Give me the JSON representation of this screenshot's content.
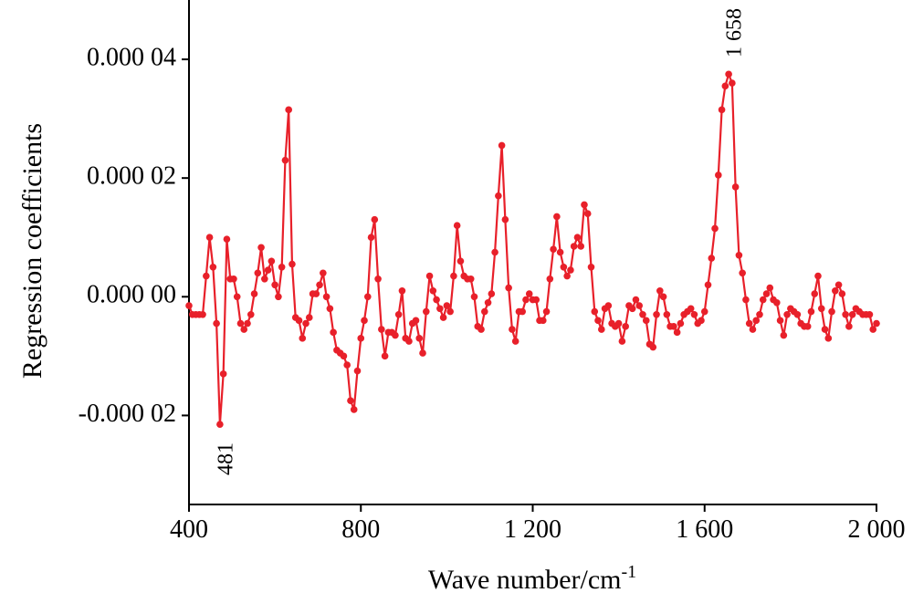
{
  "chart_data": {
    "type": "line",
    "xlabel": "Wave number/cm",
    "xlabel_superscript": "-1",
    "ylabel": "Regression coefficients",
    "annotations": [
      "481",
      "1 658"
    ],
    "xlim": [
      400,
      2000
    ],
    "xticks": [
      400,
      800,
      {
        "value": 1200,
        "label": "1 200"
      },
      {
        "value": 1600,
        "label": "1 600"
      },
      {
        "value": 2000,
        "label": "2 000"
      }
    ],
    "ylim": [
      -3.5e-05,
      5e-05
    ],
    "yticks": [
      {
        "value": -2e-05,
        "label": "-0.000 02"
      },
      {
        "value": 0,
        "label": "0.000 00"
      },
      {
        "value": 2e-05,
        "label": "0.000 02"
      },
      {
        "value": 4e-05,
        "label": "0.000 04"
      }
    ],
    "grid": false,
    "x": [
      400,
      408,
      416,
      424,
      432,
      440,
      448,
      456,
      464,
      472,
      480,
      488,
      496,
      504,
      512,
      520,
      528,
      536,
      544,
      552,
      560,
      568,
      576,
      584,
      592,
      600,
      608,
      616,
      624,
      632,
      640,
      648,
      656,
      664,
      672,
      680,
      688,
      696,
      704,
      712,
      720,
      728,
      736,
      744,
      752,
      760,
      768,
      776,
      784,
      792,
      800,
      808,
      816,
      824,
      832,
      840,
      848,
      856,
      864,
      872,
      880,
      888,
      896,
      904,
      912,
      920,
      928,
      936,
      944,
      952,
      960,
      968,
      976,
      984,
      992,
      1000,
      1008,
      1016,
      1024,
      1032,
      1040,
      1048,
      1056,
      1064,
      1072,
      1080,
      1088,
      1096,
      1104,
      1112,
      1120,
      1128,
      1136,
      1144,
      1152,
      1160,
      1168,
      1176,
      1184,
      1192,
      1200,
      1208,
      1216,
      1224,
      1232,
      1240,
      1248,
      1256,
      1264,
      1272,
      1280,
      1288,
      1296,
      1304,
      1312,
      1320,
      1328,
      1336,
      1344,
      1352,
      1360,
      1368,
      1376,
      1384,
      1392,
      1400,
      1408,
      1416,
      1424,
      1432,
      1440,
      1448,
      1456,
      1464,
      1472,
      1480,
      1488,
      1496,
      1504,
      1512,
      1520,
      1528,
      1536,
      1544,
      1552,
      1560,
      1568,
      1576,
      1584,
      1592,
      1600,
      1608,
      1616,
      1624,
      1632,
      1640,
      1648,
      1656,
      1664,
      1672,
      1680,
      1688,
      1696,
      1704,
      1712,
      1720,
      1728,
      1736,
      1744,
      1752,
      1760,
      1768,
      1776,
      1784,
      1792,
      1800,
      1808,
      1816,
      1824,
      1832,
      1840,
      1848,
      1856,
      1864,
      1872,
      1880,
      1888,
      1896,
      1904,
      1912,
      1920,
      1928,
      1936,
      1944,
      1952,
      1960,
      1968,
      1976,
      1984,
      1992,
      2000
    ],
    "series": [
      {
        "color": "#e8202a",
        "values": [
          -1.5e-06,
          -3e-06,
          -3e-06,
          -3e-06,
          -3e-06,
          3.5e-06,
          1e-05,
          5e-06,
          -4.5e-06,
          -2.15e-05,
          -1.3e-05,
          9.7e-06,
          3e-06,
          3e-06,
          0,
          -4.5e-06,
          -5.5e-06,
          -4.5e-06,
          -3e-06,
          5e-07,
          4e-06,
          8.3e-06,
          3e-06,
          4.5e-06,
          6e-06,
          2e-06,
          0,
          5e-06,
          2.3e-05,
          3.15e-05,
          5.5e-06,
          -3.5e-06,
          -4e-06,
          -7e-06,
          -4.5e-06,
          -3.5e-06,
          5e-07,
          5e-07,
          2e-06,
          4e-06,
          0,
          -2e-06,
          -6e-06,
          -9e-06,
          -9.5e-06,
          -1e-05,
          -1.15e-05,
          -1.75e-05,
          -1.9e-05,
          -1.25e-05,
          -7e-06,
          -4e-06,
          0,
          1e-05,
          1.3e-05,
          3e-06,
          -5.5e-06,
          -1e-05,
          -6e-06,
          -6e-06,
          -6.5e-06,
          -3e-06,
          1e-06,
          -7e-06,
          -7.5e-06,
          -4.5e-06,
          -4e-06,
          -7e-06,
          -9.5e-06,
          -2.5e-06,
          3.5e-06,
          1e-06,
          -5e-07,
          -2e-06,
          -3.5e-06,
          -1.5e-06,
          -2.5e-06,
          3.5e-06,
          1.2e-05,
          6e-06,
          3.5e-06,
          3e-06,
          3e-06,
          0,
          -5e-06,
          -5.5e-06,
          -2.5e-06,
          -1e-06,
          5e-07,
          7.5e-06,
          1.7e-05,
          2.55e-05,
          1.3e-05,
          1.5e-06,
          -5.5e-06,
          -7.5e-06,
          -2.5e-06,
          -2.5e-06,
          -5e-07,
          5e-07,
          -5e-07,
          -5e-07,
          -4e-06,
          -4e-06,
          -2.5e-06,
          3e-06,
          8e-06,
          1.35e-05,
          7.5e-06,
          5e-06,
          3.5e-06,
          4.5e-06,
          8.5e-06,
          1e-05,
          8.5e-06,
          1.55e-05,
          1.4e-05,
          5e-06,
          -2.5e-06,
          -4e-06,
          -5.5e-06,
          -2e-06,
          -1.5e-06,
          -4.5e-06,
          -5e-06,
          -4.5e-06,
          -7.5e-06,
          -5e-06,
          -1.5e-06,
          -2e-06,
          -5e-07,
          -1.5e-06,
          -3e-06,
          -4e-06,
          -8e-06,
          -8.5e-06,
          -3e-06,
          1e-06,
          0,
          -3e-06,
          -5e-06,
          -5e-06,
          -6e-06,
          -4.5e-06,
          -3e-06,
          -2.5e-06,
          -2e-06,
          -3e-06,
          -4.5e-06,
          -4e-06,
          -2.5e-06,
          2e-06,
          6.5e-06,
          1.15e-05,
          2.05e-05,
          3.15e-05,
          3.55e-05,
          3.75e-05,
          3.6e-05,
          1.85e-05,
          7e-06,
          4e-06,
          -5e-07,
          -4.5e-06,
          -5.5e-06,
          -4e-06,
          -3e-06,
          -5e-07,
          5e-07,
          1.5e-06,
          -5e-07,
          -1e-06,
          -4e-06,
          -6.5e-06,
          -3e-06,
          -2e-06,
          -2.5e-06,
          -3e-06,
          -4.5e-06,
          -5e-06,
          -5e-06,
          -2.5e-06,
          5e-07,
          3.5e-06,
          -2e-06,
          -5.5e-06,
          -7e-06,
          -2.5e-06,
          1e-06,
          2e-06,
          5e-07,
          -3e-06,
          -5e-06,
          -3e-06,
          -2e-06,
          -2.5e-06,
          -3e-06,
          -3e-06,
          -3e-06,
          -5.5e-06,
          -4.5e-06
        ]
      }
    ]
  }
}
